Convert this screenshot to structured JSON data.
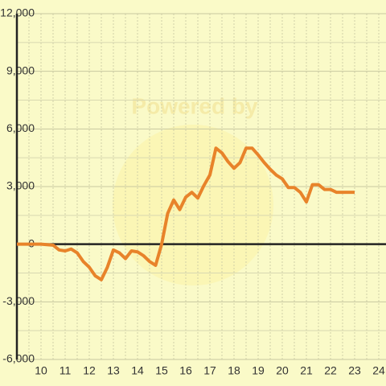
{
  "chart_data": {
    "type": "line",
    "watermark": "Powered by",
    "x": [
      9,
      10,
      10.5,
      10.75,
      11,
      11.25,
      11.5,
      11.75,
      12,
      12.25,
      12.5,
      12.75,
      13,
      13.25,
      13.5,
      13.75,
      14,
      14.25,
      14.5,
      14.75,
      15,
      15.25,
      15.5,
      15.75,
      16,
      16.25,
      16.5,
      16.75,
      17,
      17.25,
      17.5,
      17.75,
      18,
      18.25,
      18.5,
      18.75,
      19,
      19.25,
      19.5,
      19.75,
      20,
      20.25,
      20.5,
      20.75,
      21,
      21.25,
      21.5,
      21.75,
      22,
      22.25,
      23
    ],
    "series": [
      {
        "color": "#e8832a",
        "values": [
          0,
          0,
          -50,
          -300,
          -350,
          -250,
          -450,
          -900,
          -1200,
          -1650,
          -1850,
          -1200,
          -300,
          -450,
          -750,
          -350,
          -400,
          -600,
          -900,
          -1100,
          0,
          1600,
          2300,
          1800,
          2450,
          2700,
          2400,
          3050,
          3600,
          5000,
          4750,
          4300,
          3950,
          4250,
          5000,
          5000,
          4650,
          4250,
          3900,
          3600,
          3400,
          2950,
          2950,
          2700,
          2200,
          3100,
          3100,
          2850,
          2850,
          2700,
          2700
        ]
      }
    ],
    "xlim": [
      9,
      24.3
    ],
    "xticks": [
      10,
      11,
      12,
      13,
      14,
      15,
      16,
      17,
      18,
      19,
      20,
      21,
      22,
      23,
      24
    ],
    "ylim": [
      -6000,
      12000
    ],
    "yticks": [
      {
        "value": -6000,
        "label": "-6,000"
      },
      {
        "value": -3000,
        "label": "-3,000"
      },
      0,
      {
        "value": 3000,
        "label": "3,000"
      },
      {
        "value": 6000,
        "label": "6,000"
      },
      {
        "value": 9000,
        "label": "9,000"
      },
      {
        "value": 12000,
        "label": "12,000"
      }
    ],
    "grid": true
  }
}
